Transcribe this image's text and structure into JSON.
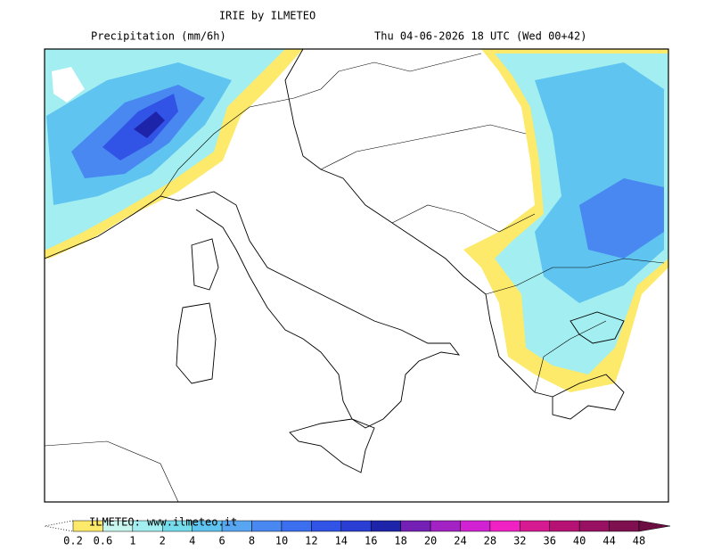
{
  "header": {
    "title": "IRIE by ILMETEO",
    "field": "Precipitation (mm/6h)",
    "valid_time": "Thu 04-06-2026 18 UTC (Wed 00+42)"
  },
  "legend": {
    "credit": "ILMETEO: www.ilmeteo.it",
    "levels": [
      "0.2",
      "0.6",
      "1",
      "2",
      "4",
      "6",
      "8",
      "10",
      "12",
      "14",
      "16",
      "18",
      "20",
      "24",
      "28",
      "32",
      "36",
      "40",
      "44",
      "48"
    ],
    "colors": [
      "#fde96a",
      "#c8f6ee",
      "#a2eef0",
      "#74dcea",
      "#60c4f0",
      "#58a6f2",
      "#4888f0",
      "#3c6ef0",
      "#3254e6",
      "#2a3ed4",
      "#1e24aa",
      "#7420b4",
      "#a222c4",
      "#d022d2",
      "#f022c4",
      "#d61a92",
      "#b61274",
      "#981062",
      "#7e1050"
    ],
    "over_color": "#6c0e42"
  }
}
